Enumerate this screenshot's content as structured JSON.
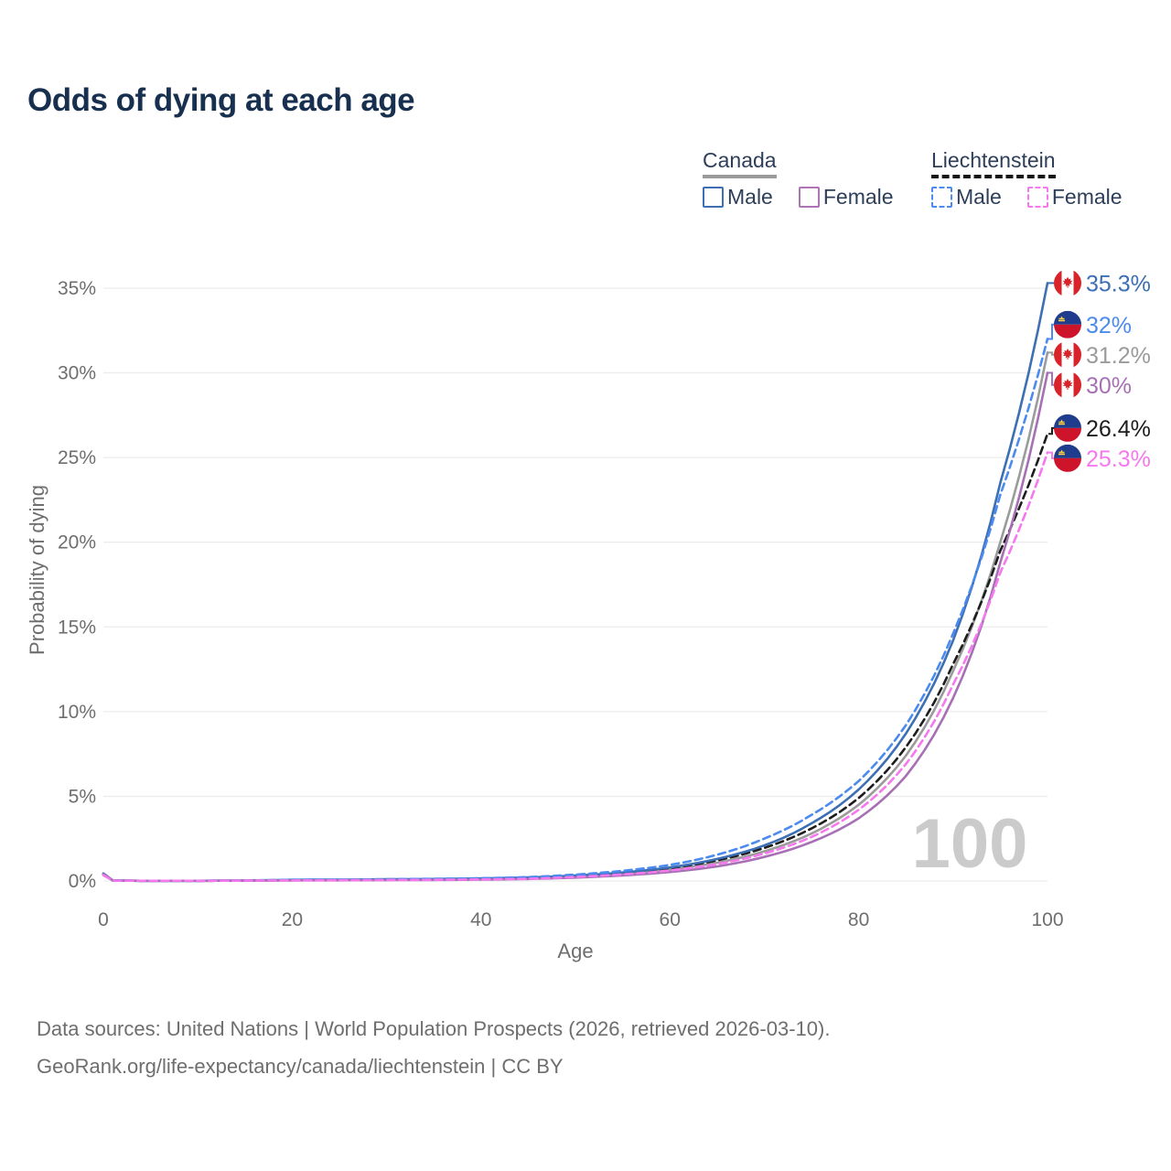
{
  "title": "Odds of dying at each age",
  "legend": {
    "canada": {
      "label": "Canada",
      "male": "Male",
      "female": "Female"
    },
    "liechtenstein": {
      "label": "Liechtenstein",
      "male": "Male",
      "female": "Female"
    }
  },
  "watermark": "100",
  "footer": {
    "line1": "Data sources: United Nations | World Population Prospects (2026, retrieved 2026-03-10).",
    "line2": "GeoRank.org/life-expectancy/canada/liechtenstein | CC BY"
  },
  "chart_data": {
    "type": "line",
    "title": "Odds of dying at each age",
    "xlabel": "Age",
    "ylabel": "Probability of dying",
    "xlim": [
      0,
      100
    ],
    "ylim_pct": [
      0,
      36.5
    ],
    "grid": "horizontal",
    "legend_position": "top-right",
    "x_ticks": [
      {
        "value": 0,
        "label": "0"
      },
      {
        "value": 20,
        "label": "20"
      },
      {
        "value": 40,
        "label": "40"
      },
      {
        "value": 60,
        "label": "60"
      },
      {
        "value": 80,
        "label": "80"
      },
      {
        "value": 100,
        "label": "100"
      }
    ],
    "y_ticks": [
      {
        "value": 0,
        "label": "0%"
      },
      {
        "value": 5,
        "label": "5%"
      },
      {
        "value": 10,
        "label": "10%"
      },
      {
        "value": 15,
        "label": "15%"
      },
      {
        "value": 20,
        "label": "20%"
      },
      {
        "value": 25,
        "label": "25%"
      },
      {
        "value": 30,
        "label": "30%"
      },
      {
        "value": 35,
        "label": "35%"
      }
    ],
    "ages": [
      0,
      1,
      5,
      10,
      15,
      20,
      25,
      30,
      35,
      40,
      45,
      50,
      55,
      60,
      65,
      70,
      75,
      80,
      85,
      90,
      95,
      100
    ],
    "series": [
      {
        "id": "canada-both",
        "name": "Canada (both sexes)",
        "country": "Canada",
        "sex": "Both",
        "line": "solid",
        "color": "#9b9b9b",
        "flag": "canada",
        "end_label": "31.2%",
        "end_value": 31.2,
        "values_pct": [
          0.43,
          0.03,
          0.01,
          0.012,
          0.02,
          0.05,
          0.055,
          0.07,
          0.085,
          0.11,
          0.16,
          0.26,
          0.42,
          0.67,
          1.08,
          1.75,
          2.8,
          4.5,
          7.4,
          12.4,
          20.0,
          31.2
        ]
      },
      {
        "id": "liechtenstein-both",
        "name": "Liechtenstein (both sexes)",
        "country": "Liechtenstein",
        "sex": "Both",
        "line": "dashed",
        "color": "#1d1d1d",
        "flag": "liechtenstein",
        "end_label": "26.4%",
        "end_value": 26.4,
        "values_pct": [
          0.37,
          0.03,
          0.01,
          0.012,
          0.02,
          0.05,
          0.06,
          0.075,
          0.09,
          0.12,
          0.17,
          0.3,
          0.48,
          0.76,
          1.22,
          1.95,
          3.1,
          4.9,
          7.9,
          12.8,
          19.5,
          26.4
        ]
      },
      {
        "id": "canada-male",
        "name": "Canada Male",
        "country": "Canada",
        "sex": "Male",
        "line": "solid",
        "color": "#3c6fb3",
        "flag": "canada",
        "end_label": "35.3%",
        "end_value": 35.3,
        "values_pct": [
          0.45,
          0.03,
          0.01,
          0.012,
          0.03,
          0.07,
          0.08,
          0.1,
          0.12,
          0.15,
          0.21,
          0.32,
          0.5,
          0.8,
          1.3,
          2.1,
          3.4,
          5.4,
          8.7,
          14.2,
          23.5,
          35.3
        ]
      },
      {
        "id": "liechtenstein-male",
        "name": "Liechtenstein Male",
        "country": "Liechtenstein",
        "sex": "Male",
        "line": "dashed",
        "color": "#4b8bf0",
        "flag": "liechtenstein",
        "end_label": "32%",
        "end_value": 32.0,
        "values_pct": [
          0.4,
          0.03,
          0.01,
          0.012,
          0.03,
          0.07,
          0.08,
          0.1,
          0.13,
          0.16,
          0.23,
          0.38,
          0.6,
          0.95,
          1.55,
          2.5,
          3.9,
          5.9,
          9.2,
          14.6,
          22.8,
          32.0
        ]
      },
      {
        "id": "canada-female",
        "name": "Canada Female",
        "country": "Canada",
        "sex": "Female",
        "line": "solid",
        "color": "#a770b5",
        "flag": "canada",
        "end_label": "30%",
        "end_value": 30.0,
        "values_pct": [
          0.4,
          0.02,
          0.01,
          0.012,
          0.02,
          0.035,
          0.04,
          0.05,
          0.06,
          0.08,
          0.12,
          0.2,
          0.33,
          0.53,
          0.86,
          1.42,
          2.3,
          3.7,
          6.2,
          10.8,
          18.8,
          30.0
        ]
      },
      {
        "id": "liechtenstein-female",
        "name": "Liechtenstein Female",
        "country": "Liechtenstein",
        "sex": "Female",
        "line": "dashed",
        "color": "#f678ee",
        "flag": "liechtenstein",
        "end_label": "25.3%",
        "end_value": 25.3,
        "values_pct": [
          0.34,
          0.02,
          0.01,
          0.012,
          0.02,
          0.035,
          0.045,
          0.055,
          0.07,
          0.09,
          0.13,
          0.24,
          0.39,
          0.62,
          1.0,
          1.62,
          2.6,
          4.2,
          6.9,
          11.6,
          18.2,
          25.3
        ]
      }
    ],
    "colors": {
      "canada_male": "#3c6fb3",
      "canada_female": "#a770b5",
      "canada_both": "#9b9b9b",
      "liechtenstein_male": "#4b8bf0",
      "liechtenstein_female": "#f678ee",
      "liechtenstein_both": "#1d1d1d",
      "canada_flag_red": "#d8232a",
      "liechtenstein_flag_blue": "#1f3d8c",
      "liechtenstein_flag_red": "#ce142b",
      "liechtenstein_flag_gold": "#ffd33d"
    }
  }
}
